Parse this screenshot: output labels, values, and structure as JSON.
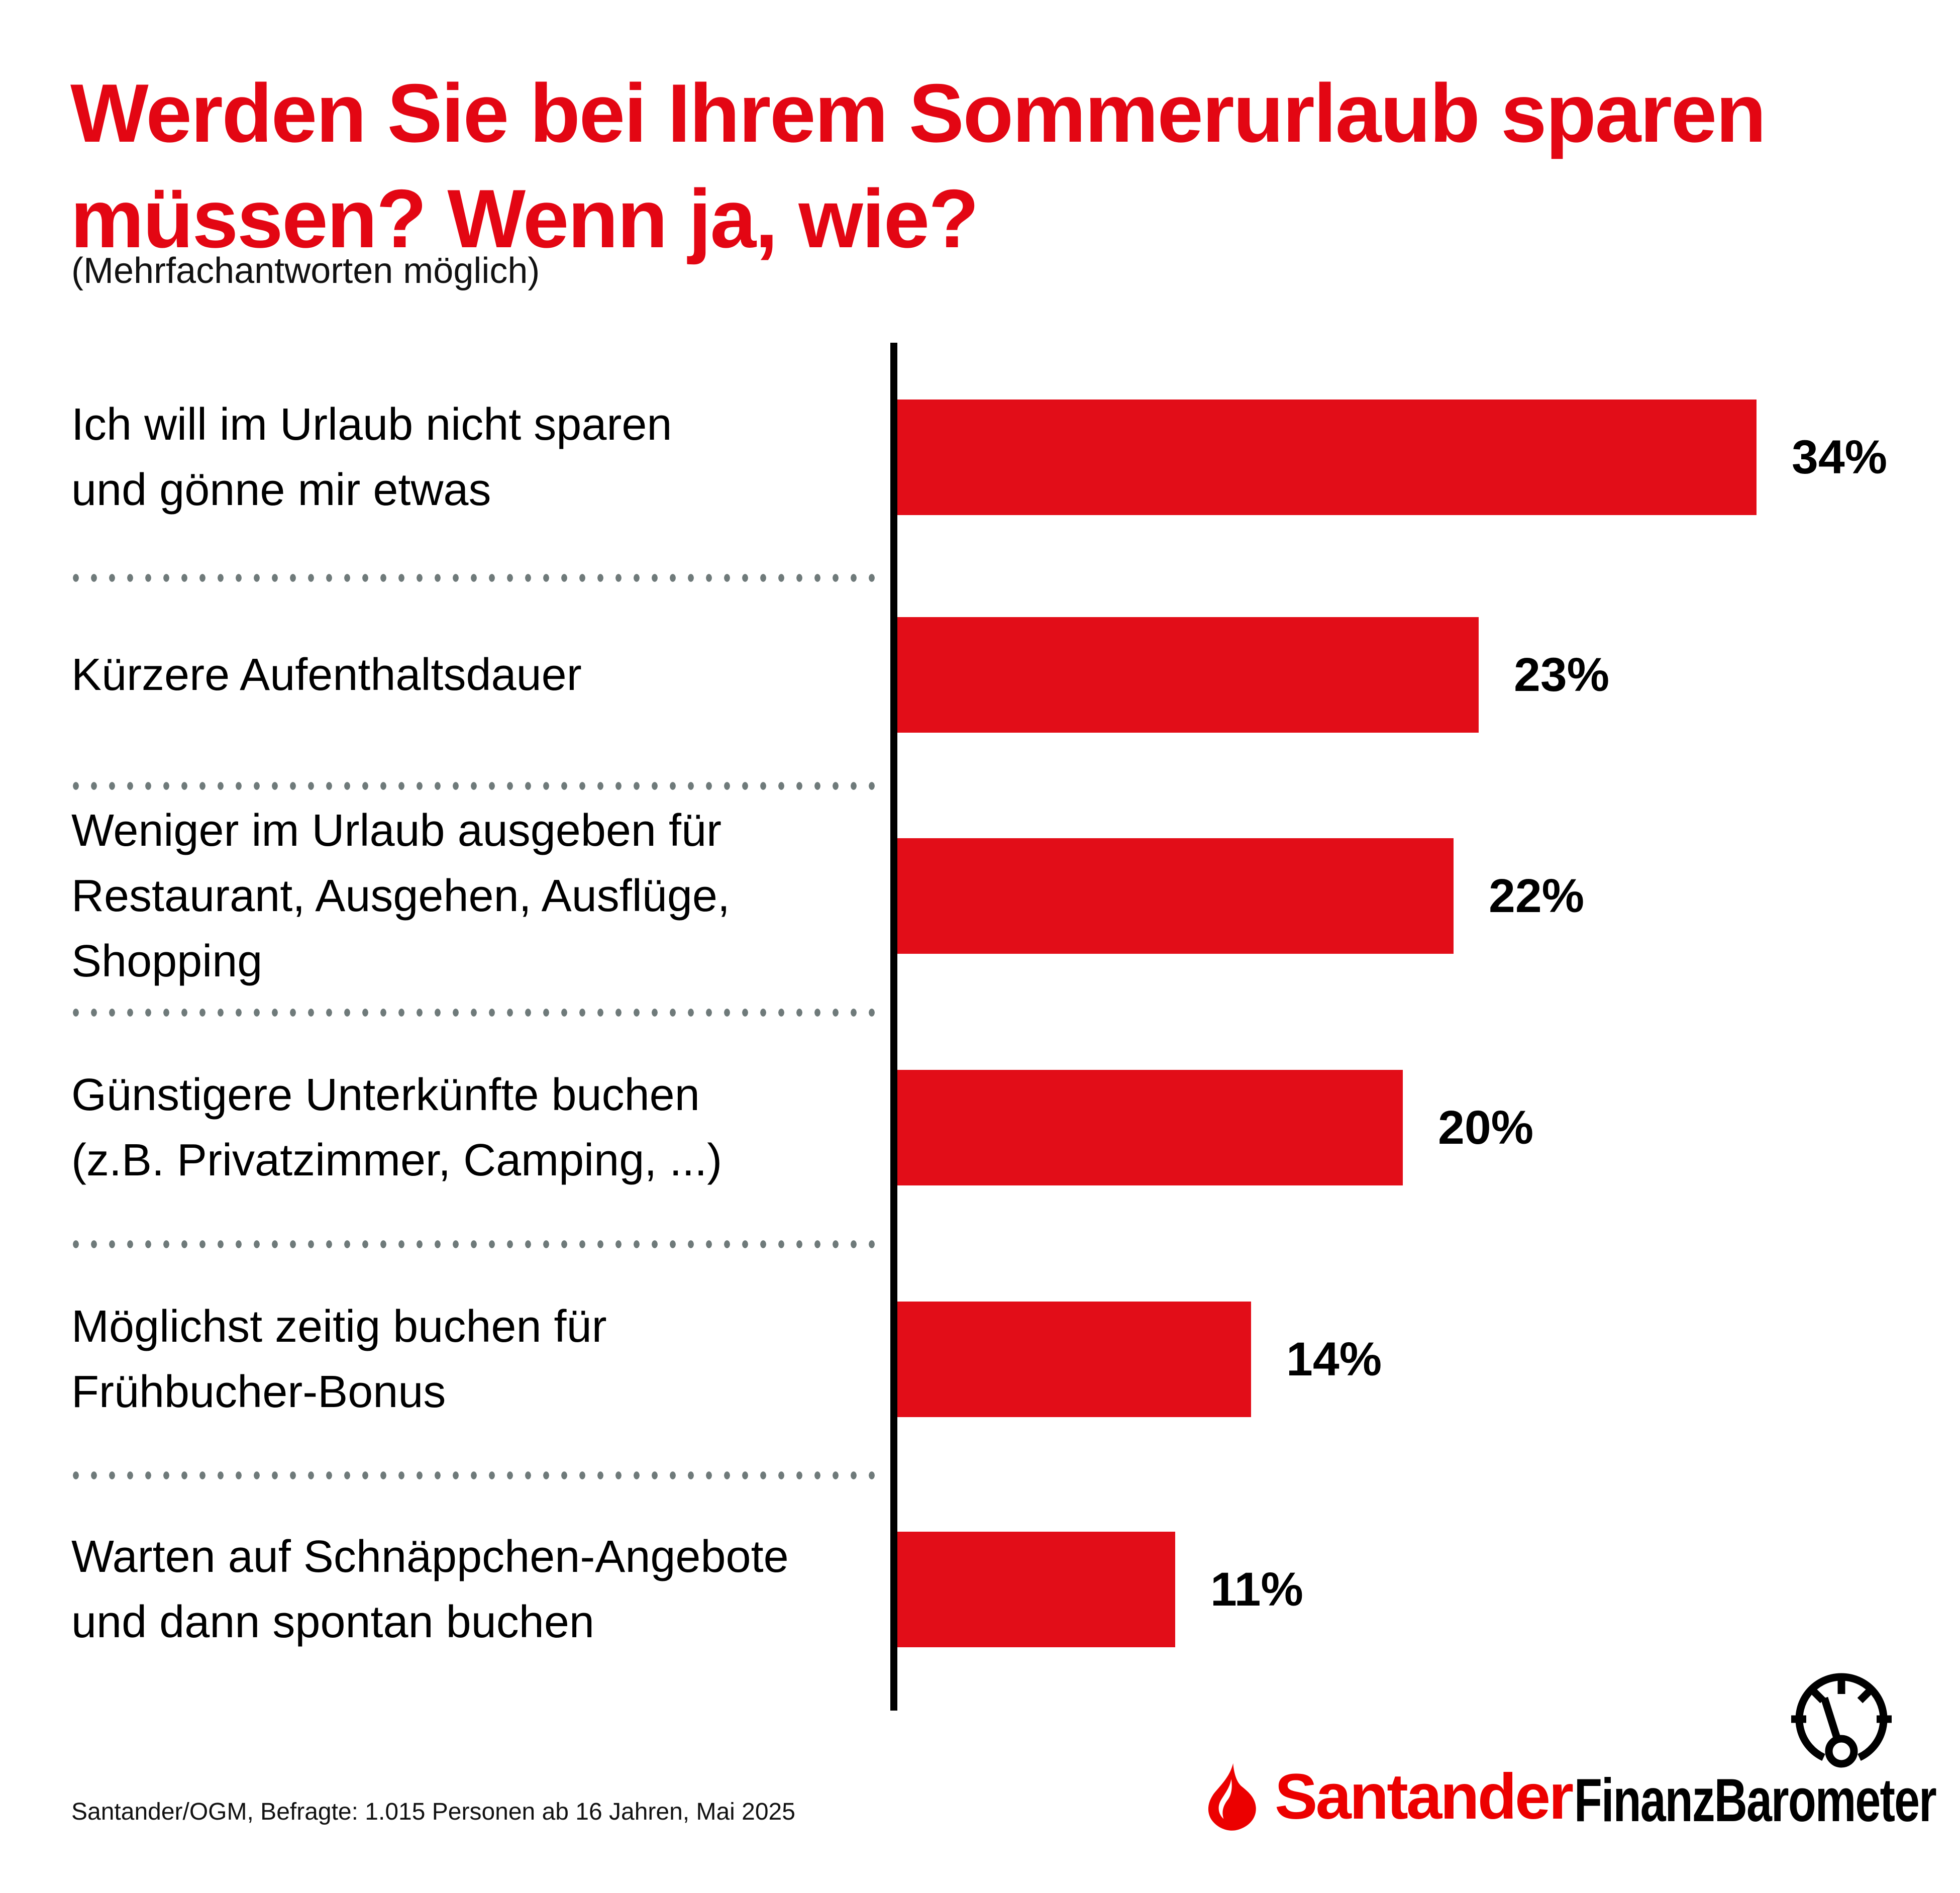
{
  "title": {
    "line1": "Werden Sie bei Ihrem Sommerurlaub sparen",
    "line2": "müssen? Wenn ja, wie?",
    "color": "#E30613"
  },
  "subtitle": "(Mehrfachantworten möglich)",
  "chart_data": {
    "type": "bar",
    "orientation": "horizontal",
    "unit": "%",
    "categories": [
      [
        "Ich will im Urlaub nicht sparen",
        "und gönne mir etwas"
      ],
      [
        "Kürzere Aufenthaltsdauer"
      ],
      [
        "Weniger im Urlaub ausgeben für",
        "Restaurant, Ausgehen, Ausflüge, Shopping"
      ],
      [
        "Günstigere Unterkünfte buchen",
        "(z.B. Privatzimmer, Camping, ...)"
      ],
      [
        "Möglichst zeitig buchen für",
        "Frühbucher-Bonus"
      ],
      [
        "Warten auf Schnäppchen-Angebote",
        "und dann spontan buchen"
      ]
    ],
    "values": [
      34,
      23,
      22,
      20,
      14,
      11
    ],
    "value_labels": [
      "34%",
      "23%",
      "22%",
      "20%",
      "14%",
      "11%"
    ],
    "xlim": [
      0,
      40
    ],
    "bar_color": "#E20D18",
    "axis_color": "#000000",
    "separator_dot_color": "#6F7A7A",
    "grid": false,
    "legend": false
  },
  "footer": {
    "source": "Santander/OGM, Befragte: 1.015 Personen ab 16 Jahren, Mai 2025"
  },
  "logo": {
    "brand": "Santander",
    "product": "FinanzBarometer",
    "brand_color": "#EC0000",
    "product_color": "#000000",
    "icons": [
      "flame-icon",
      "gauge-icon"
    ]
  }
}
